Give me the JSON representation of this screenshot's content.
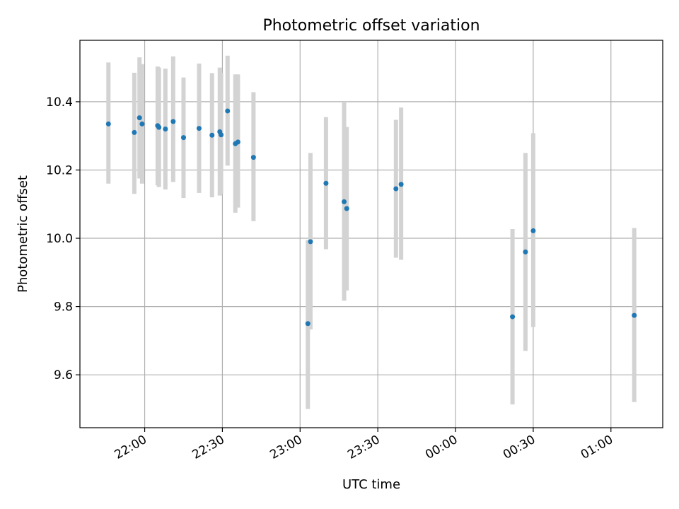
{
  "chart_data": {
    "type": "scatter",
    "title": "Photometric offset variation",
    "xlabel": "UTC time",
    "ylabel": "Photometric offset",
    "x_tick_labels": [
      "22:00",
      "22:30",
      "23:00",
      "23:30",
      "00:00",
      "00:30",
      "01:00"
    ],
    "y_tick_labels": [
      "9.6",
      "9.8",
      "10.0",
      "10.2",
      "10.4"
    ],
    "y_ticks": [
      9.6,
      9.8,
      10.0,
      10.2,
      10.4
    ],
    "x_ticks": [
      "22:00",
      "22:30",
      "23:00",
      "23:30",
      "00:00",
      "00:30",
      "01:00"
    ],
    "xlim": [
      "21:35",
      "01:20"
    ],
    "ylim": [
      9.445,
      10.58
    ],
    "grid": true,
    "point_color": "#1f77b4",
    "errorbar_color": "#d3d3d3",
    "points": [
      {
        "t": "21:46",
        "y": 10.335,
        "lo": 10.16,
        "hi": 10.515
      },
      {
        "t": "21:56",
        "y": 10.31,
        "lo": 10.13,
        "hi": 10.485
      },
      {
        "t": "21:58",
        "y": 10.353,
        "lo": 10.175,
        "hi": 10.53
      },
      {
        "t": "21:59",
        "y": 10.335,
        "lo": 10.16,
        "hi": 10.51
      },
      {
        "t": "22:05",
        "y": 10.33,
        "lo": 10.155,
        "hi": 10.503
      },
      {
        "t": "22:05.5",
        "y": 10.325,
        "lo": 10.15,
        "hi": 10.5
      },
      {
        "t": "22:08",
        "y": 10.32,
        "lo": 10.143,
        "hi": 10.497
      },
      {
        "t": "22:11",
        "y": 10.342,
        "lo": 10.165,
        "hi": 10.533
      },
      {
        "t": "22:15",
        "y": 10.295,
        "lo": 10.118,
        "hi": 10.471
      },
      {
        "t": "22:21",
        "y": 10.322,
        "lo": 10.133,
        "hi": 10.512
      },
      {
        "t": "22:26",
        "y": 10.302,
        "lo": 10.12,
        "hi": 10.484
      },
      {
        "t": "22:29",
        "y": 10.312,
        "lo": 10.125,
        "hi": 10.5
      },
      {
        "t": "22:29.5",
        "y": 10.303,
        "lo": 10.13,
        "hi": 10.485
      },
      {
        "t": "22:32",
        "y": 10.373,
        "lo": 10.213,
        "hi": 10.535
      },
      {
        "t": "22:35",
        "y": 10.277,
        "lo": 10.075,
        "hi": 10.48
      },
      {
        "t": "22:36",
        "y": 10.282,
        "lo": 10.09,
        "hi": 10.48
      },
      {
        "t": "22:42",
        "y": 10.237,
        "lo": 10.05,
        "hi": 10.428
      },
      {
        "t": "23:03",
        "y": 9.75,
        "lo": 9.5,
        "hi": 9.995
      },
      {
        "t": "23:04",
        "y": 9.99,
        "lo": 9.733,
        "hi": 10.25
      },
      {
        "t": "23:10",
        "y": 10.161,
        "lo": 9.968,
        "hi": 10.355
      },
      {
        "t": "23:17",
        "y": 10.107,
        "lo": 9.817,
        "hi": 10.4
      },
      {
        "t": "23:18",
        "y": 10.087,
        "lo": 9.847,
        "hi": 10.326
      },
      {
        "t": "23:37",
        "y": 10.145,
        "lo": 9.943,
        "hi": 10.347
      },
      {
        "t": "23:39",
        "y": 10.158,
        "lo": 9.937,
        "hi": 10.383
      },
      {
        "t": "00:22",
        "y": 9.77,
        "lo": 9.513,
        "hi": 10.027
      },
      {
        "t": "00:27",
        "y": 9.96,
        "lo": 9.67,
        "hi": 10.25
      },
      {
        "t": "00:30",
        "y": 10.022,
        "lo": 9.74,
        "hi": 10.308
      },
      {
        "t": "01:09",
        "y": 9.774,
        "lo": 9.52,
        "hi": 10.03
      }
    ]
  }
}
